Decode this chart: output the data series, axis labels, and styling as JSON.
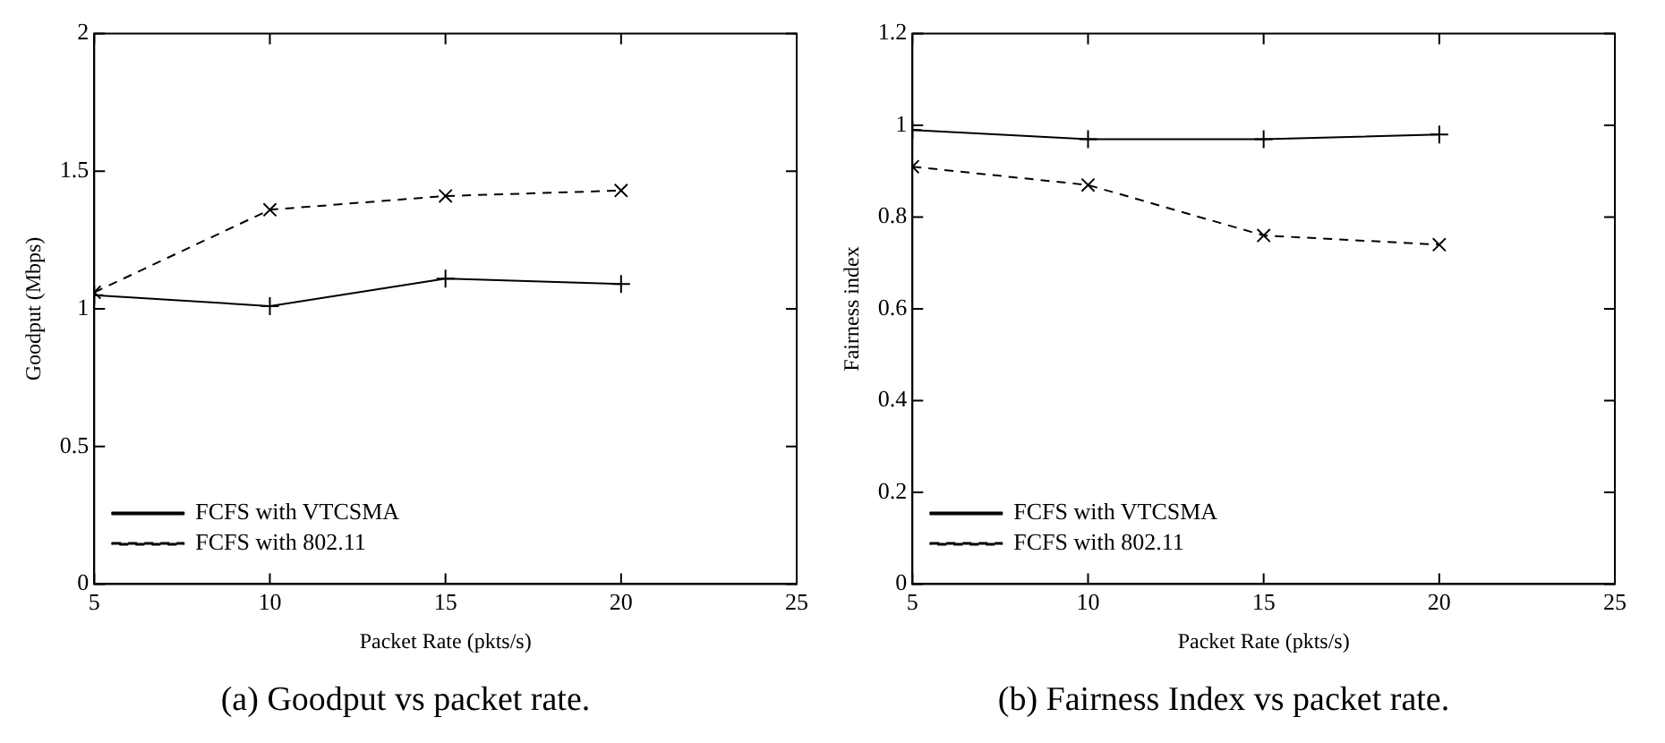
{
  "chart_data": [
    {
      "type": "line",
      "title": "(a) Goodput vs packet rate.",
      "xlabel": "Packet Rate (pkts/s)",
      "ylabel": "Goodput (Mbps)",
      "x": [
        5,
        10,
        15,
        20
      ],
      "xlim": [
        5,
        25
      ],
      "xticks": [
        5,
        10,
        15,
        20,
        25
      ],
      "ylim": [
        0,
        2
      ],
      "yticks": [
        0,
        0.5,
        1,
        1.5,
        2
      ],
      "legend": "bottom left",
      "series": [
        {
          "name": "FCFS with VTCSMA",
          "color": "#000000",
          "values": [
            1.05,
            1.01,
            1.11,
            1.09
          ],
          "marker": "plus",
          "line_style": "solid"
        },
        {
          "name": "FCFS with 802.11",
          "color": "#000000",
          "values": [
            1.06,
            1.36,
            1.41,
            1.43
          ],
          "marker": "cross",
          "line_style": "dashed"
        }
      ]
    },
    {
      "type": "line",
      "title": "(b) Fairness Index vs packet rate.",
      "xlabel": "Packet Rate (pkts/s)",
      "ylabel": "Fairness index",
      "x": [
        5,
        10,
        15,
        20
      ],
      "xlim": [
        5,
        25
      ],
      "xticks": [
        5,
        10,
        15,
        20,
        25
      ],
      "ylim": [
        0,
        1.2
      ],
      "yticks": [
        0,
        0.2,
        0.4,
        0.6,
        0.8,
        1,
        1.2
      ],
      "legend": "bottom left",
      "series": [
        {
          "name": "FCFS with VTCSMA",
          "color": "#000000",
          "values": [
            0.99,
            0.97,
            0.97,
            0.98
          ],
          "marker": "plus",
          "line_style": "solid"
        },
        {
          "name": "FCFS with 802.11",
          "color": "#000000",
          "values": [
            0.91,
            0.87,
            0.76,
            0.74
          ],
          "marker": "cross",
          "line_style": "dashed"
        }
      ]
    }
  ]
}
